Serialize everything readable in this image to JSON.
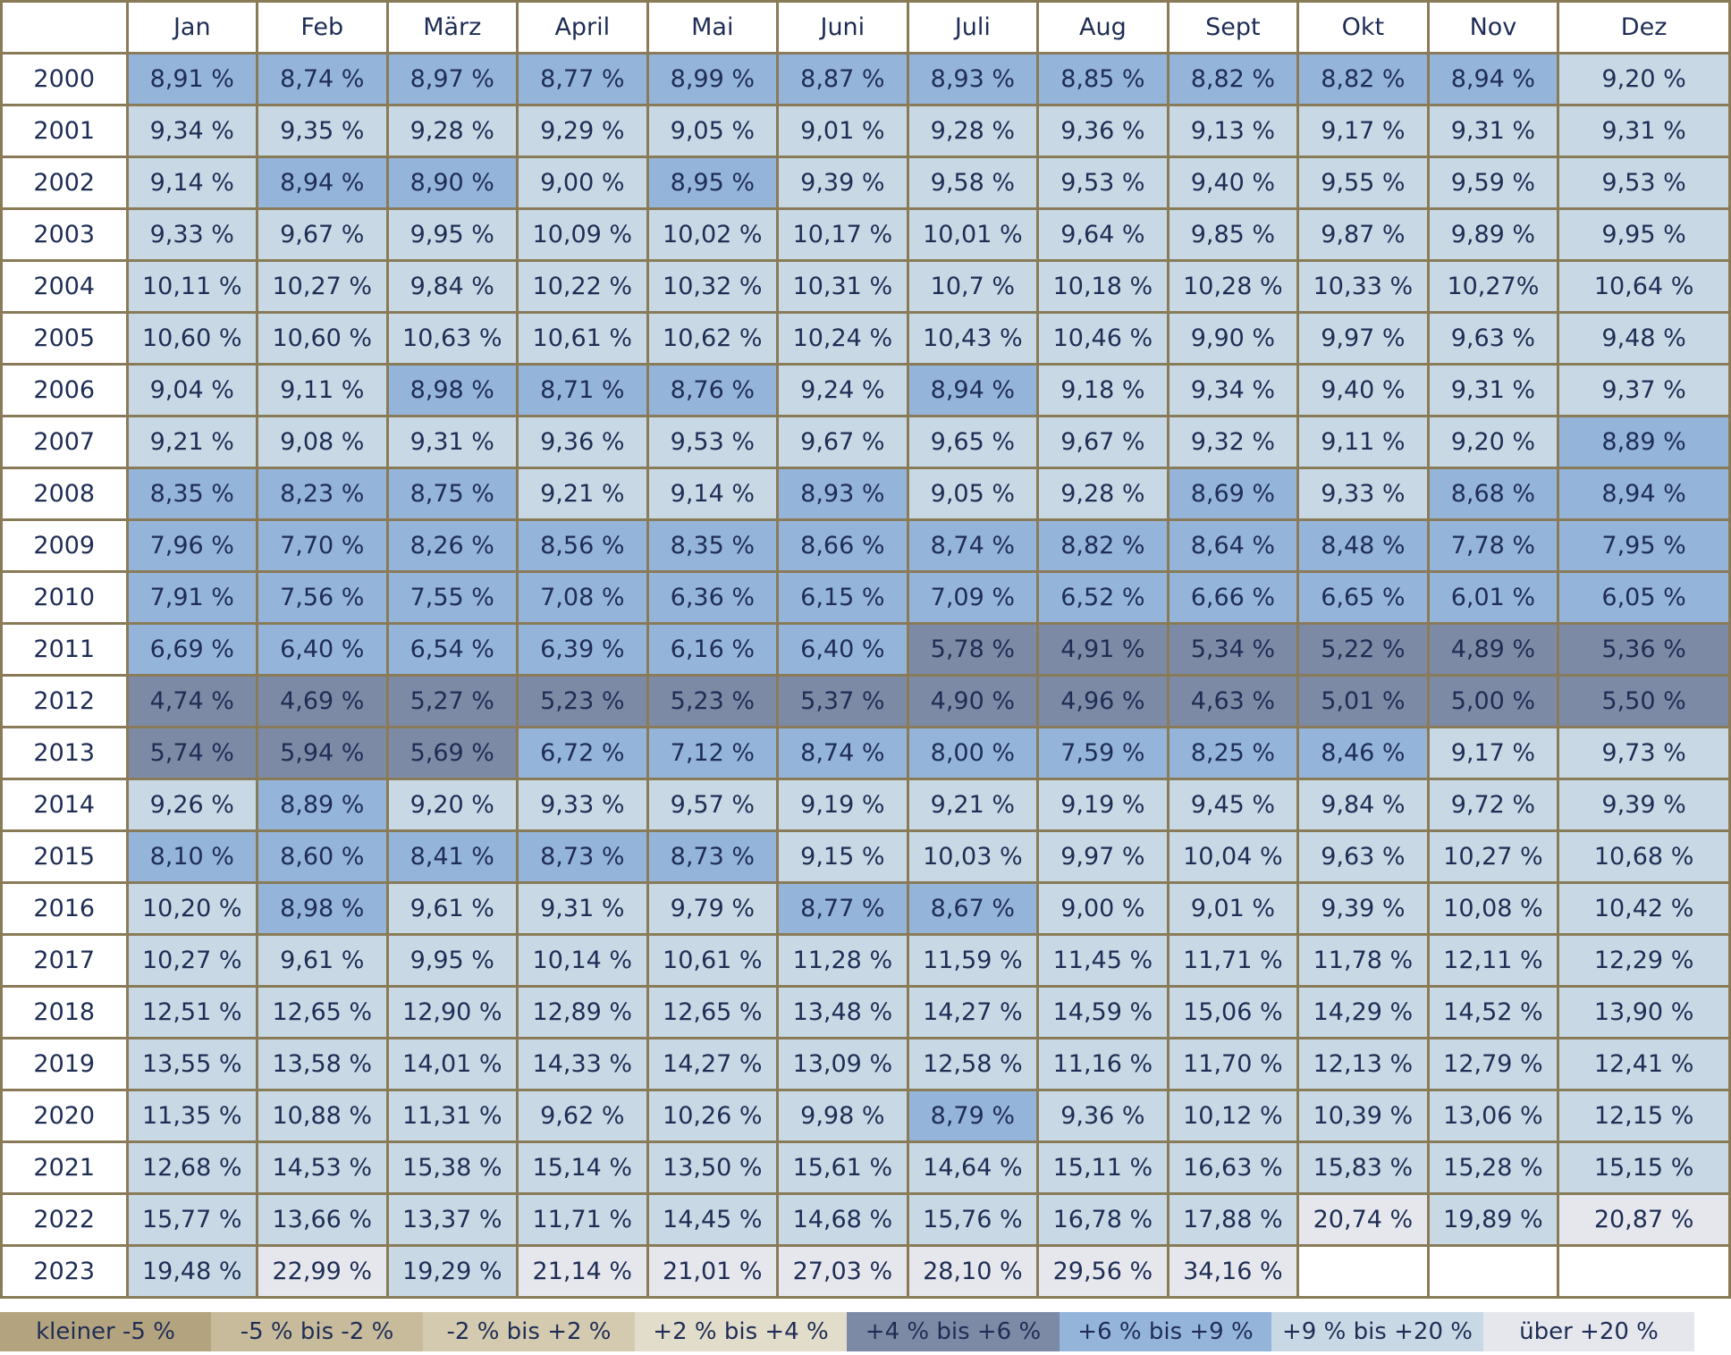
{
  "chart_data": {
    "type": "heatmap",
    "columns": [
      "Jan",
      "Feb",
      "März",
      "April",
      "Mai",
      "Juni",
      "Juli",
      "Aug",
      "Sept",
      "Okt",
      "Nov",
      "Dez"
    ],
    "rows": [
      {
        "year": "2000",
        "values": [
          "8,91 %",
          "8,74 %",
          "8,97 %",
          "8,77 %",
          "8,99 %",
          "8,87 %",
          "8,93 %",
          "8,85 %",
          "8,82 %",
          "8,82 %",
          "8,94 %",
          "9,20 %"
        ],
        "bands": [
          5,
          5,
          5,
          5,
          5,
          5,
          5,
          5,
          5,
          5,
          5,
          6
        ]
      },
      {
        "year": "2001",
        "values": [
          "9,34 %",
          "9,35 %",
          "9,28 %",
          "9,29 %",
          "9,05 %",
          "9,01 %",
          "9,28 %",
          "9,36 %",
          "9,13 %",
          "9,17 %",
          "9,31 %",
          "9,31 %"
        ],
        "bands": [
          6,
          6,
          6,
          6,
          6,
          6,
          6,
          6,
          6,
          6,
          6,
          6
        ]
      },
      {
        "year": "2002",
        "values": [
          "9,14 %",
          "8,94 %",
          "8,90 %",
          "9,00 %",
          "8,95 %",
          "9,39 %",
          "9,58 %",
          "9,53 %",
          "9,40 %",
          "9,55 %",
          "9,59 %",
          "9,53 %"
        ],
        "bands": [
          6,
          5,
          5,
          6,
          5,
          6,
          6,
          6,
          6,
          6,
          6,
          6
        ]
      },
      {
        "year": "2003",
        "values": [
          "9,33 %",
          "9,67 %",
          "9,95 %",
          "10,09 %",
          "10,02 %",
          "10,17 %",
          "10,01 %",
          "9,64 %",
          "9,85 %",
          "9,87 %",
          "9,89 %",
          "9,95 %"
        ],
        "bands": [
          6,
          6,
          6,
          6,
          6,
          6,
          6,
          6,
          6,
          6,
          6,
          6
        ]
      },
      {
        "year": "2004",
        "values": [
          "10,11 %",
          "10,27 %",
          "9,84 %",
          "10,22 %",
          "10,32 %",
          "10,31 %",
          "10,7 %",
          "10,18 %",
          "10,28 %",
          "10,33 %",
          "10,27%",
          "10,64 %"
        ],
        "bands": [
          6,
          6,
          6,
          6,
          6,
          6,
          6,
          6,
          6,
          6,
          6,
          6
        ]
      },
      {
        "year": "2005",
        "values": [
          "10,60 %",
          "10,60 %",
          "10,63 %",
          "10,61 %",
          "10,62 %",
          "10,24 %",
          "10,43 %",
          "10,46 %",
          "9,90 %",
          "9,97 %",
          "9,63 %",
          "9,48 %"
        ],
        "bands": [
          6,
          6,
          6,
          6,
          6,
          6,
          6,
          6,
          6,
          6,
          6,
          6
        ]
      },
      {
        "year": "2006",
        "values": [
          "9,04 %",
          "9,11 %",
          "8,98 %",
          "8,71 %",
          "8,76 %",
          "9,24 %",
          "8,94 %",
          "9,18 %",
          "9,34 %",
          "9,40 %",
          "9,31 %",
          "9,37 %"
        ],
        "bands": [
          6,
          6,
          5,
          5,
          5,
          6,
          5,
          6,
          6,
          6,
          6,
          6
        ]
      },
      {
        "year": "2007",
        "values": [
          "9,21 %",
          "9,08 %",
          "9,31 %",
          "9,36 %",
          "9,53 %",
          "9,67 %",
          "9,65 %",
          "9,67 %",
          "9,32 %",
          "9,11 %",
          "9,20 %",
          "8,89 %"
        ],
        "bands": [
          6,
          6,
          6,
          6,
          6,
          6,
          6,
          6,
          6,
          6,
          6,
          5
        ]
      },
      {
        "year": "2008",
        "values": [
          "8,35 %",
          "8,23 %",
          "8,75 %",
          "9,21 %",
          "9,14 %",
          "8,93 %",
          "9,05 %",
          "9,28 %",
          "8,69 %",
          "9,33 %",
          "8,68 %",
          "8,94 %"
        ],
        "bands": [
          5,
          5,
          5,
          6,
          6,
          5,
          6,
          6,
          5,
          6,
          5,
          5
        ]
      },
      {
        "year": "2009",
        "values": [
          "7,96 %",
          "7,70 %",
          "8,26 %",
          "8,56 %",
          "8,35 %",
          "8,66 %",
          "8,74 %",
          "8,82 %",
          "8,64 %",
          "8,48 %",
          "7,78 %",
          "7,95 %"
        ],
        "bands": [
          5,
          5,
          5,
          5,
          5,
          5,
          5,
          5,
          5,
          5,
          5,
          5
        ]
      },
      {
        "year": "2010",
        "values": [
          "7,91 %",
          "7,56 %",
          "7,55 %",
          "7,08 %",
          "6,36 %",
          "6,15 %",
          "7,09 %",
          "6,52 %",
          "6,66 %",
          "6,65 %",
          "6,01 %",
          "6,05 %"
        ],
        "bands": [
          5,
          5,
          5,
          5,
          5,
          5,
          5,
          5,
          5,
          5,
          5,
          5
        ]
      },
      {
        "year": "2011",
        "values": [
          "6,69 %",
          "6,40 %",
          "6,54 %",
          "6,39 %",
          "6,16 %",
          "6,40 %",
          "5,78 %",
          "4,91 %",
          "5,34 %",
          "5,22 %",
          "4,89 %",
          "5,36 %"
        ],
        "bands": [
          5,
          5,
          5,
          5,
          5,
          5,
          4,
          4,
          4,
          4,
          4,
          4
        ]
      },
      {
        "year": "2012",
        "values": [
          "4,74 %",
          "4,69 %",
          "5,27 %",
          "5,23 %",
          "5,23 %",
          "5,37 %",
          "4,90 %",
          "4,96 %",
          "4,63 %",
          "5,01 %",
          "5,00 %",
          "5,50 %"
        ],
        "bands": [
          4,
          4,
          4,
          4,
          4,
          4,
          4,
          4,
          4,
          4,
          4,
          4
        ]
      },
      {
        "year": "2013",
        "values": [
          "5,74 %",
          "5,94 %",
          "5,69 %",
          "6,72 %",
          "7,12 %",
          "8,74 %",
          "8,00 %",
          "7,59 %",
          "8,25 %",
          "8,46 %",
          "9,17 %",
          "9,73 %"
        ],
        "bands": [
          4,
          4,
          4,
          5,
          5,
          5,
          5,
          5,
          5,
          5,
          6,
          6
        ]
      },
      {
        "year": "2014",
        "values": [
          "9,26 %",
          "8,89 %",
          "9,20 %",
          "9,33 %",
          "9,57 %",
          "9,19 %",
          "9,21 %",
          "9,19 %",
          "9,45 %",
          "9,84 %",
          "9,72 %",
          "9,39 %"
        ],
        "bands": [
          6,
          5,
          6,
          6,
          6,
          6,
          6,
          6,
          6,
          6,
          6,
          6
        ]
      },
      {
        "year": "2015",
        "values": [
          "8,10 %",
          "8,60 %",
          "8,41 %",
          "8,73 %",
          "8,73 %",
          "9,15 %",
          "10,03 %",
          "9,97 %",
          "10,04 %",
          "9,63 %",
          "10,27 %",
          "10,68 %"
        ],
        "bands": [
          5,
          5,
          5,
          5,
          5,
          6,
          6,
          6,
          6,
          6,
          6,
          6
        ]
      },
      {
        "year": "2016",
        "values": [
          "10,20 %",
          "8,98 %",
          "9,61 %",
          "9,31 %",
          "9,79 %",
          "8,77 %",
          "8,67 %",
          "9,00 %",
          "9,01 %",
          "9,39 %",
          "10,08 %",
          "10,42 %"
        ],
        "bands": [
          6,
          5,
          6,
          6,
          6,
          5,
          5,
          6,
          6,
          6,
          6,
          6
        ]
      },
      {
        "year": "2017",
        "values": [
          "10,27 %",
          "9,61 %",
          "9,95 %",
          "10,14 %",
          "10,61 %",
          "11,28 %",
          "11,59 %",
          "11,45 %",
          "11,71 %",
          "11,78 %",
          "12,11 %",
          "12,29 %"
        ],
        "bands": [
          6,
          6,
          6,
          6,
          6,
          6,
          6,
          6,
          6,
          6,
          6,
          6
        ]
      },
      {
        "year": "2018",
        "values": [
          "12,51 %",
          "12,65 %",
          "12,90 %",
          "12,89 %",
          "12,65 %",
          "13,48 %",
          "14,27 %",
          "14,59 %",
          "15,06 %",
          "14,29 %",
          "14,52 %",
          "13,90 %"
        ],
        "bands": [
          6,
          6,
          6,
          6,
          6,
          6,
          6,
          6,
          6,
          6,
          6,
          6
        ]
      },
      {
        "year": "2019",
        "values": [
          "13,55 %",
          "13,58 %",
          "14,01 %",
          "14,33 %",
          "14,27 %",
          "13,09 %",
          "12,58 %",
          "11,16 %",
          "11,70 %",
          "12,13 %",
          "12,79 %",
          "12,41 %"
        ],
        "bands": [
          6,
          6,
          6,
          6,
          6,
          6,
          6,
          6,
          6,
          6,
          6,
          6
        ]
      },
      {
        "year": "2020",
        "values": [
          "11,35 %",
          "10,88 %",
          "11,31 %",
          "9,62 %",
          "10,26 %",
          "9,98 %",
          "8,79 %",
          "9,36 %",
          "10,12 %",
          "10,39 %",
          "13,06 %",
          "12,15 %"
        ],
        "bands": [
          6,
          6,
          6,
          6,
          6,
          6,
          5,
          6,
          6,
          6,
          6,
          6
        ]
      },
      {
        "year": "2021",
        "values": [
          "12,68 %",
          "14,53 %",
          "15,38 %",
          "15,14 %",
          "13,50 %",
          "15,61 %",
          "14,64 %",
          "15,11 %",
          "16,63 %",
          "15,83 %",
          "15,28 %",
          "15,15 %"
        ],
        "bands": [
          6,
          6,
          6,
          6,
          6,
          6,
          6,
          6,
          6,
          6,
          6,
          6
        ]
      },
      {
        "year": "2022",
        "values": [
          "15,77 %",
          "13,66 %",
          "13,37 %",
          "11,71 %",
          "14,45 %",
          "14,68 %",
          "15,76 %",
          "16,78 %",
          "17,88 %",
          "20,74 %",
          "19,89 %",
          "20,87 %"
        ],
        "bands": [
          6,
          6,
          6,
          6,
          6,
          6,
          6,
          6,
          6,
          7,
          6,
          7
        ]
      },
      {
        "year": "2023",
        "values": [
          "19,48 %",
          "22,99 %",
          "19,29 %",
          "21,14 %",
          "21,01 %",
          "27,03 %",
          "28,10 %",
          "29,56 %",
          "34,16 %",
          "",
          "",
          ""
        ],
        "bands": [
          6,
          7,
          6,
          7,
          7,
          7,
          7,
          7,
          7,
          -1,
          -1,
          -1
        ]
      }
    ],
    "legend": [
      {
        "label": "kleiner -5 %",
        "color": "#b3a47f",
        "text_color": "#1f2d55"
      },
      {
        "label": "-5 % bis -2 %",
        "color": "#c7bb9c",
        "text_color": "#1f2d55"
      },
      {
        "label": "-2 % bis +2 %",
        "color": "#d4caaf",
        "text_color": "#1f2d55"
      },
      {
        "label": "+2 % bis +4 %",
        "color": "#e2dccb",
        "text_color": "#1f2d55"
      },
      {
        "label": "+4 % bis +6 %",
        "color": "#7d8aa5",
        "text_color": "#ffffff"
      },
      {
        "label": "+6 % bis +9 %",
        "color": "#94b4da",
        "text_color": "#1f2d55"
      },
      {
        "label": "+9 % bis +20 %",
        "color": "#c8d9e5",
        "text_color": "#1f2d55"
      },
      {
        "label": "über +20 %",
        "color": "#e5e7ed",
        "text_color": "#1f2d55"
      }
    ],
    "empty_color": "#ffffff",
    "border_color": "#8a7b58"
  }
}
